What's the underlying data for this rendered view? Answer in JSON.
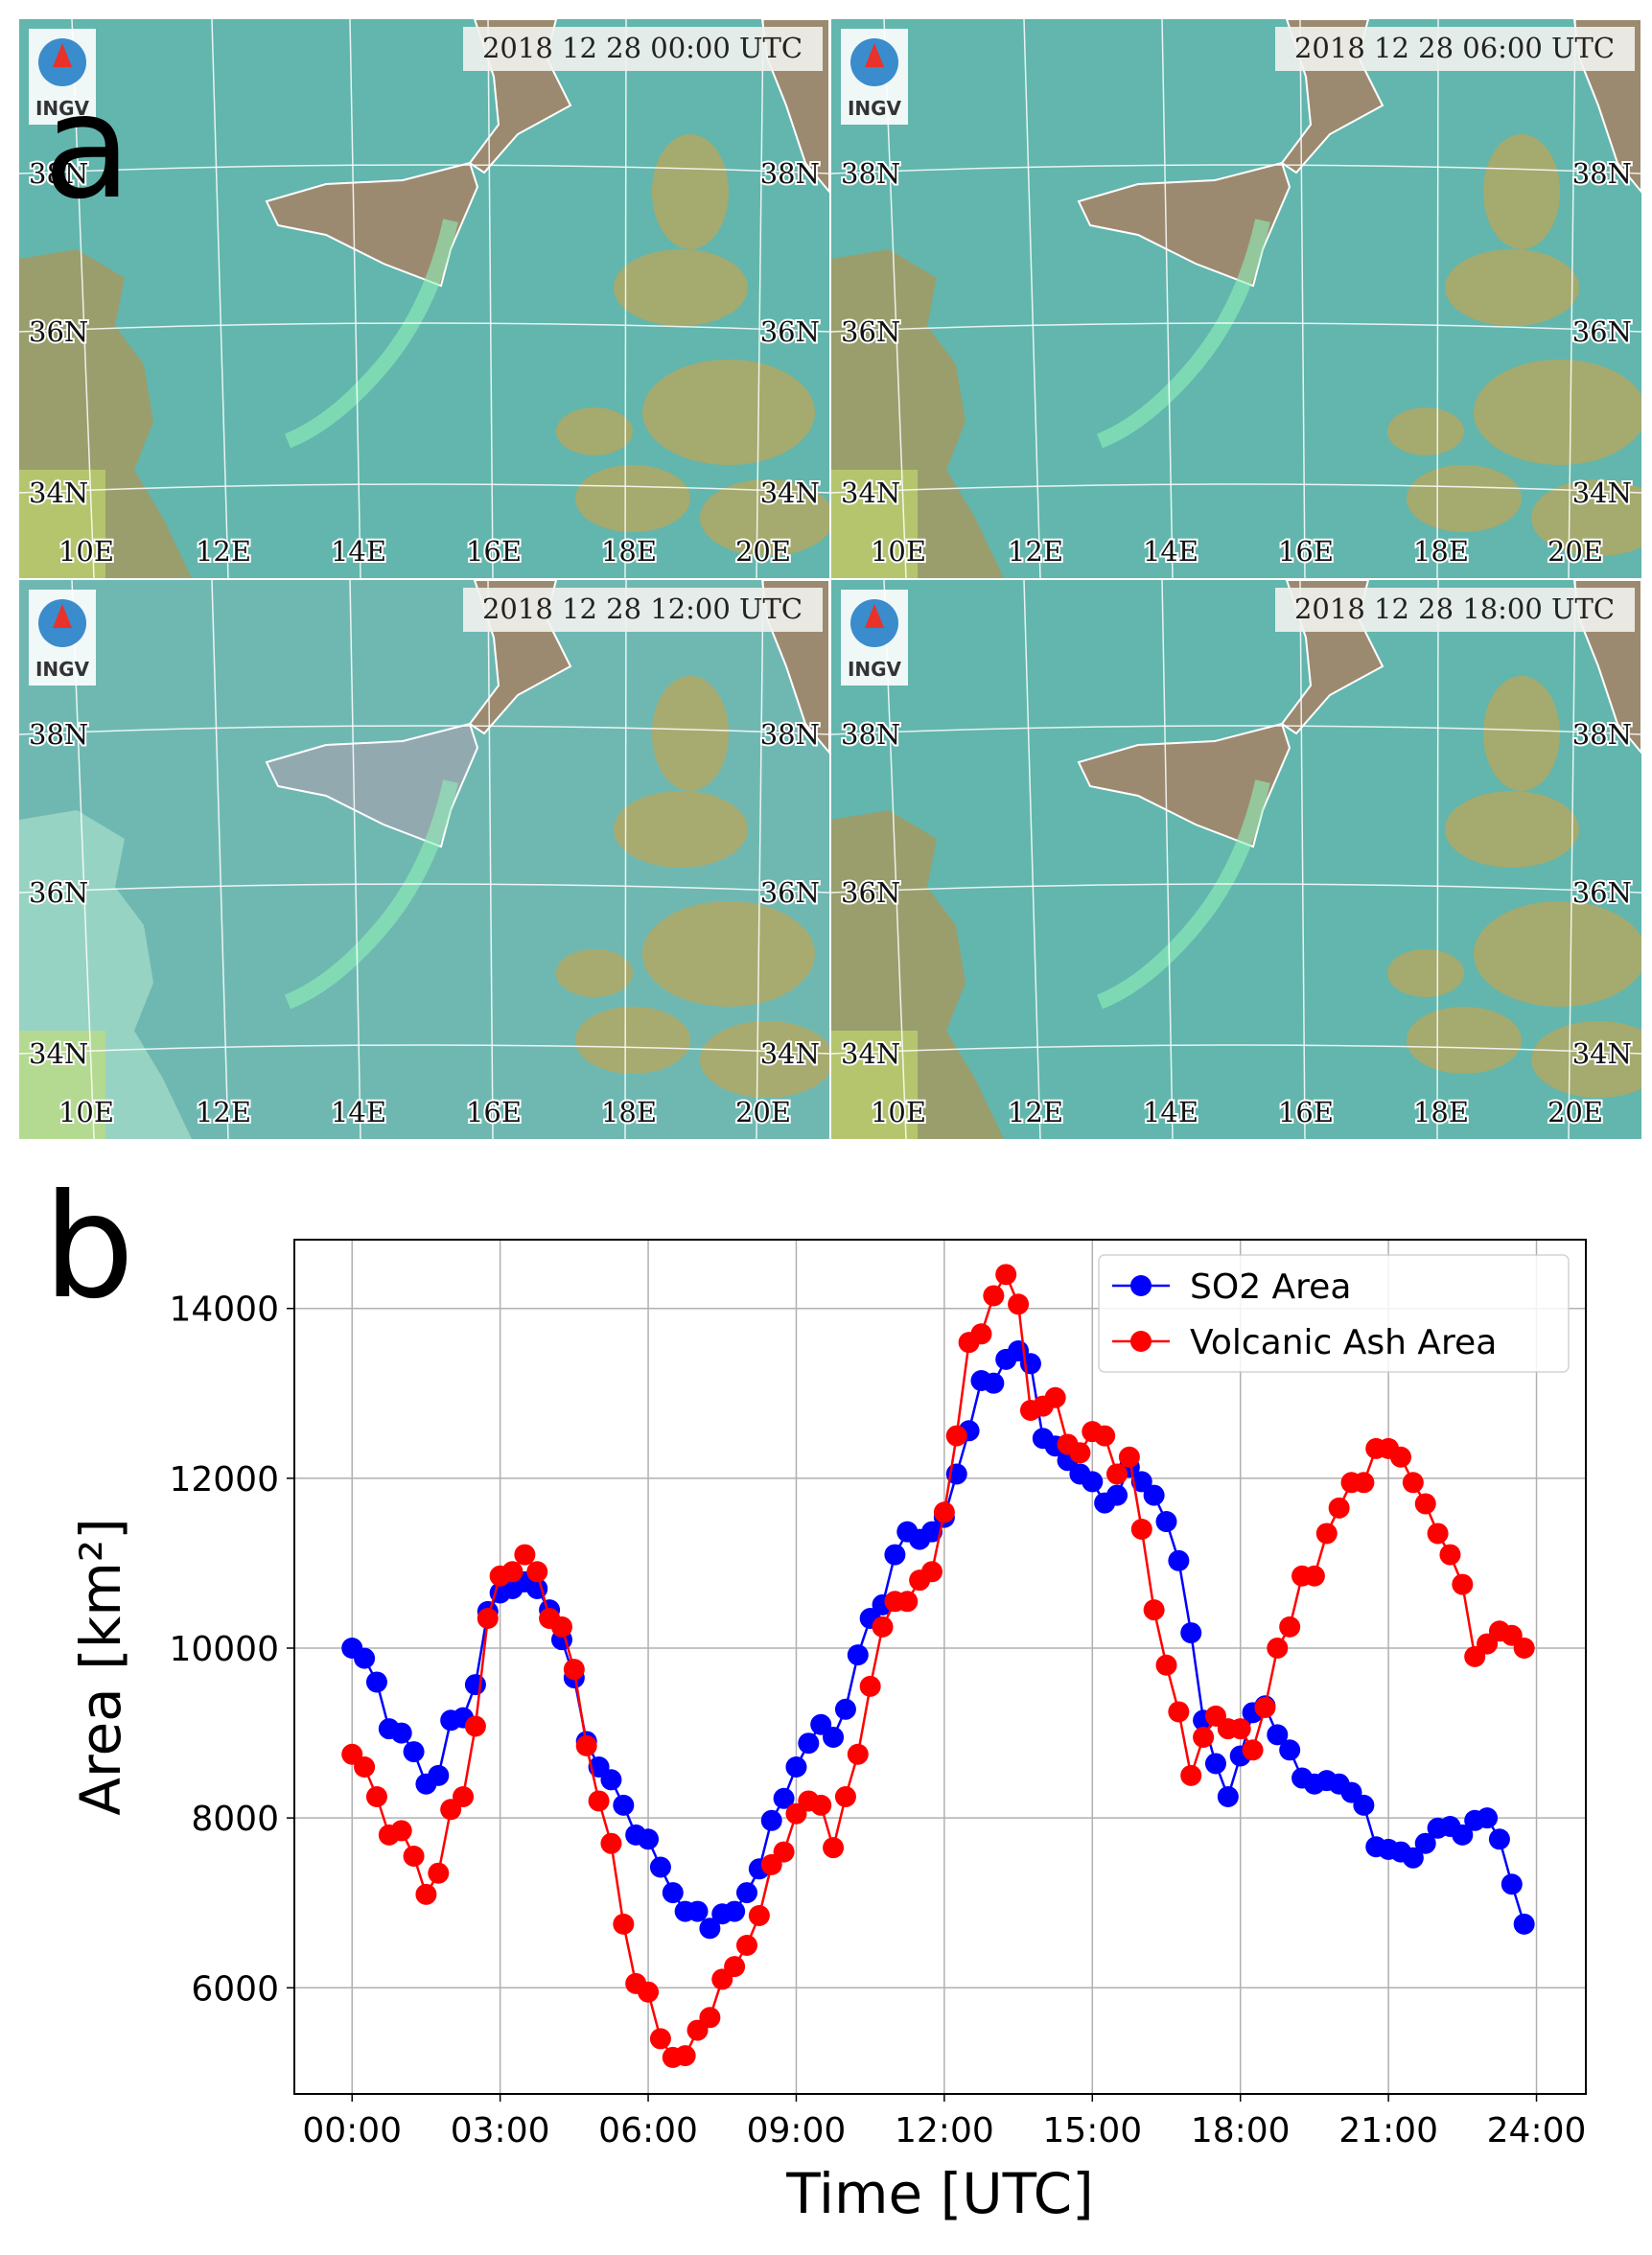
{
  "panel_a": {
    "label": "a",
    "logo": "INGV",
    "timestamps": [
      "2018 12 28 00:00 UTC",
      "2018 12 28 06:00 UTC",
      "2018 12 28 12:00 UTC",
      "2018 12 28 18:00 UTC"
    ],
    "lat_labels": [
      "38N",
      "36N",
      "34N"
    ],
    "lon_labels": [
      "10E",
      "12E",
      "14E",
      "16E",
      "18E",
      "20E"
    ]
  },
  "panel_b": {
    "label": "b"
  },
  "chart_data": {
    "type": "line",
    "xlabel": "Time [UTC]",
    "ylabel": "Area [km²]",
    "grid": true,
    "legend": "upper right",
    "xlim": [
      -1.17,
      25.0
    ],
    "ylim": [
      4750,
      14810
    ],
    "xticks": [
      {
        "value": 0,
        "label": "00:00"
      },
      {
        "value": 3,
        "label": "03:00"
      },
      {
        "value": 6,
        "label": "06:00"
      },
      {
        "value": 9,
        "label": "09:00"
      },
      {
        "value": 12,
        "label": "12:00"
      },
      {
        "value": 15,
        "label": "15:00"
      },
      {
        "value": 18,
        "label": "18:00"
      },
      {
        "value": 21,
        "label": "21:00"
      },
      {
        "value": 24,
        "label": "24:00"
      }
    ],
    "yticks": [
      6000,
      8000,
      10000,
      12000,
      14000
    ],
    "x": [
      0,
      0.25,
      0.5,
      0.75,
      1,
      1.25,
      1.5,
      1.75,
      2,
      2.25,
      2.5,
      2.75,
      3,
      3.25,
      3.5,
      3.75,
      4,
      4.25,
      4.5,
      4.75,
      5,
      5.25,
      5.5,
      5.75,
      6,
      6.25,
      6.5,
      6.75,
      7,
      7.25,
      7.5,
      7.75,
      8,
      8.25,
      8.5,
      8.75,
      9,
      9.25,
      9.5,
      9.75,
      10,
      10.25,
      10.5,
      10.75,
      11,
      11.25,
      11.5,
      11.75,
      12,
      12.25,
      12.5,
      12.75,
      13,
      13.25,
      13.5,
      13.75,
      14,
      14.25,
      14.5,
      14.75,
      15,
      15.25,
      15.5,
      15.75,
      16,
      16.25,
      16.5,
      16.75,
      17,
      17.25,
      17.5,
      17.75,
      18,
      18.25,
      18.5,
      18.75,
      19,
      19.25,
      19.5,
      19.75,
      20,
      20.25,
      20.5,
      20.75,
      21,
      21.25,
      21.5,
      21.75,
      22,
      22.25,
      22.5,
      22.75,
      23,
      23.25,
      23.5,
      23.75
    ],
    "series": [
      {
        "name": "SO2 Area",
        "color": "#0000ff",
        "values": [
          10000,
          9880,
          9600,
          9050,
          9000,
          8780,
          8400,
          8500,
          9150,
          9180,
          9570,
          10430,
          10650,
          10700,
          10780,
          10700,
          10450,
          10100,
          9650,
          8900,
          8600,
          8450,
          8150,
          7800,
          7750,
          7420,
          7120,
          6900,
          6900,
          6700,
          6870,
          6900,
          7120,
          7400,
          7970,
          8230,
          8600,
          8880,
          9100,
          8950,
          9280,
          9920,
          10350,
          10510,
          11100,
          11370,
          11280,
          11370,
          11540,
          12050,
          12560,
          13150,
          13120,
          13400,
          13500,
          13350,
          12470,
          12380,
          12210,
          12050,
          11960,
          11710,
          11800,
          12130,
          11960,
          11800,
          11490,
          11030,
          10180,
          9150,
          8640,
          8250,
          8730,
          9240,
          9320,
          8980,
          8800,
          8470,
          8400,
          8440,
          8400,
          8300,
          8150,
          7660,
          7630,
          7600,
          7530,
          7700,
          7880,
          7900,
          7800,
          7970,
          8000,
          7750,
          7220,
          6750
        ]
      },
      {
        "name": "Volcanic Ash Area",
        "color": "#ff0000",
        "values": [
          8750,
          8600,
          8250,
          7800,
          7850,
          7550,
          7100,
          7350,
          8100,
          8250,
          9080,
          10350,
          10850,
          10900,
          11100,
          10900,
          10350,
          10250,
          9750,
          8850,
          8200,
          7700,
          6750,
          6050,
          5950,
          5400,
          5180,
          5200,
          5500,
          5650,
          6100,
          6250,
          6500,
          6850,
          7450,
          7600,
          8050,
          8200,
          8150,
          7650,
          8250,
          8750,
          9550,
          10250,
          10550,
          10550,
          10800,
          10900,
          11600,
          12500,
          13600,
          13700,
          14150,
          14400,
          14050,
          12800,
          12850,
          12950,
          12400,
          12300,
          12550,
          12500,
          12050,
          12250,
          11400,
          10450,
          9800,
          9250,
          8500,
          8950,
          9200,
          9050,
          9050,
          8800,
          9300,
          10000,
          10250,
          10850,
          10850,
          11350,
          11650,
          11950,
          11950,
          12350,
          12350,
          12250,
          11950,
          11700,
          11350,
          11100,
          10750,
          9900,
          10050,
          10200,
          10150,
          10000
        ]
      }
    ]
  }
}
